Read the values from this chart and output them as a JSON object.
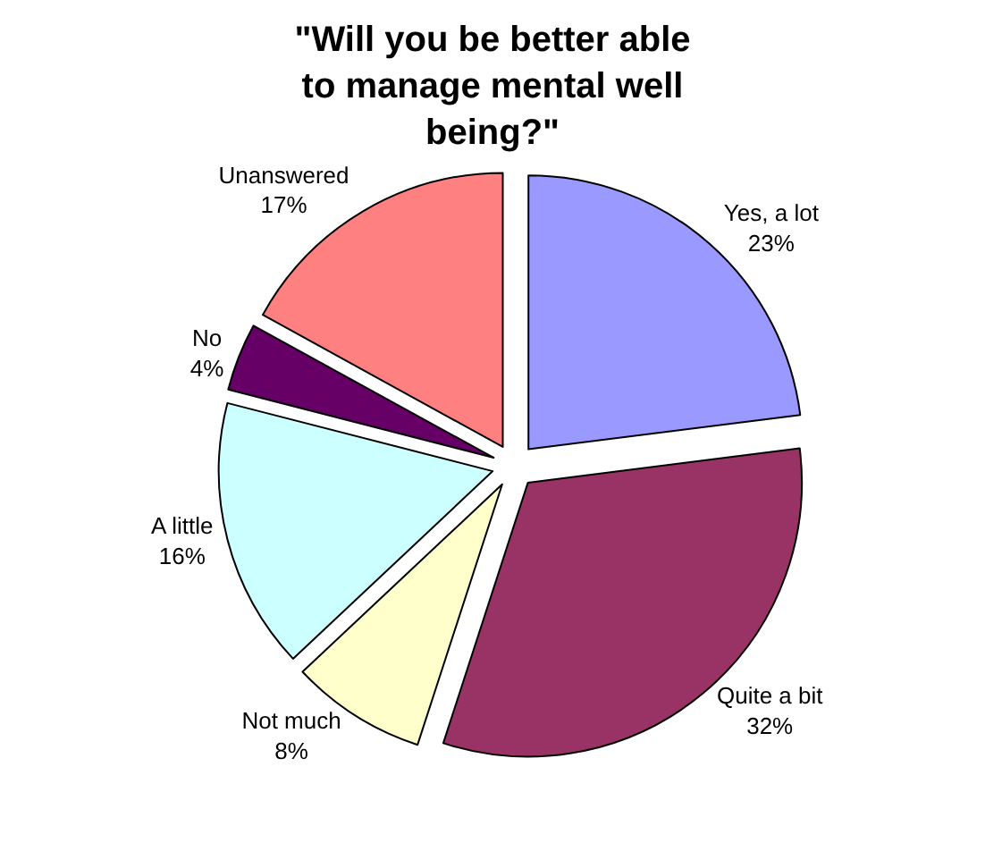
{
  "chart_data": {
    "type": "pie",
    "title": "\"Will you be better able to manage mental well being?\"",
    "categories": [
      "Yes, a lot",
      "Quite a bit",
      "Not much",
      "A little",
      "No",
      "Unanswered"
    ],
    "values": [
      23,
      32,
      8,
      16,
      4,
      17
    ],
    "value_labels": [
      "23%",
      "32%",
      "8%",
      "16%",
      "4%",
      "17%"
    ],
    "colors": [
      "#9999ff",
      "#993366",
      "#ffffcc",
      "#ccffff",
      "#660066",
      "#ff8080"
    ],
    "legend": false
  }
}
